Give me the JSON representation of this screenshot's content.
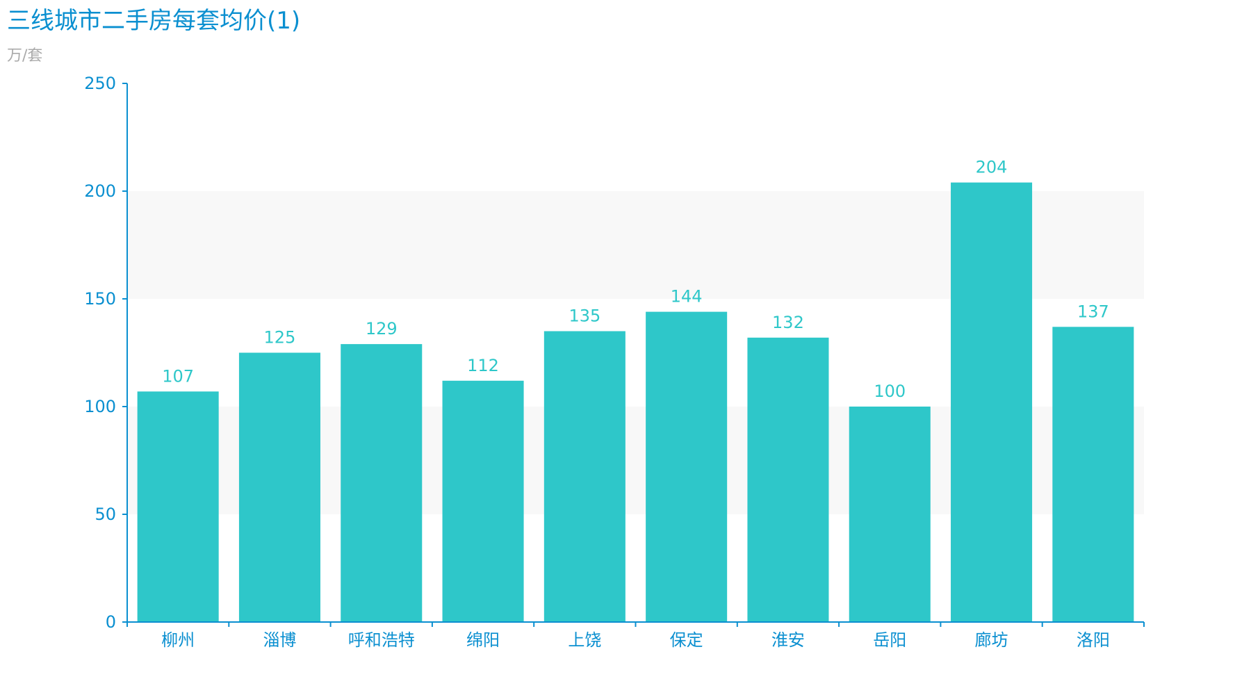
{
  "colors": {
    "title": "#0a8fd0",
    "subtitle": "#aaaaaa",
    "axis": "#0a8fd0",
    "bar": "#2ec7c9",
    "data_label": "#2ec7c9",
    "band": "#f8f8f8"
  },
  "chart_data": {
    "type": "bar",
    "title": "三线城市二手房每套均价(1)",
    "subtitle": "万/套",
    "categories": [
      "柳州",
      "淄博",
      "呼和浩特",
      "绵阳",
      "上饶",
      "保定",
      "淮安",
      "岳阳",
      "廊坊",
      "洛阳"
    ],
    "values": [
      107,
      125,
      129,
      112,
      135,
      144,
      132,
      100,
      204,
      137
    ],
    "ylim": [
      0,
      250
    ],
    "yticks": [
      0,
      50,
      100,
      150,
      200,
      250
    ],
    "split_area": true,
    "data_labels": true,
    "legend": "none"
  }
}
